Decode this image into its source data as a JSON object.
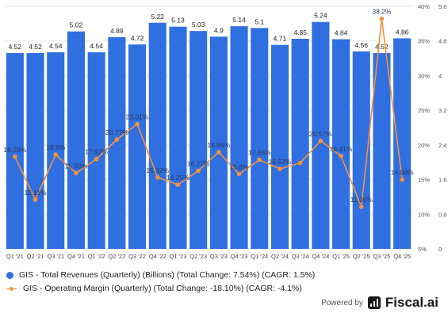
{
  "chart_data": {
    "type": "bar+line",
    "categories": [
      "Q1 '21",
      "Q2 '21",
      "Q3 '21",
      "Q4 '21",
      "Q1 '22",
      "Q2 '22",
      "Q3 '22",
      "Q4 '22",
      "Q1 '23",
      "Q2 '23",
      "Q3 '23",
      "Q4 '23",
      "Q1 '24",
      "Q2 '24",
      "Q3 '24",
      "Q4 '24",
      "Q1 '25",
      "Q2 '25",
      "Q3 '25",
      "Q4 '25"
    ],
    "series": [
      {
        "name": "GIS - Total Revenues (Quarterly) (Billions) (Total Change: 7.54%) (CAGR: 1.5%)",
        "type": "bar",
        "axis": "right-outer",
        "color": "#2f6fe0",
        "values": [
          4.52,
          4.52,
          4.54,
          5.02,
          4.54,
          4.89,
          4.72,
          5.22,
          5.13,
          5.03,
          4.9,
          5.14,
          5.1,
          4.71,
          4.85,
          5.24,
          4.84,
          4.56,
          4.52,
          4.86
        ],
        "labels": [
          "4.52",
          "4.52",
          "4.54",
          "5.02",
          "4.54",
          "4.89",
          "4.72",
          "5.22",
          "5.13",
          "5.03",
          "4.9",
          "5.14",
          "5.1",
          "4.71",
          "4.85",
          "5.24",
          "4.84",
          "4.56",
          "4.52",
          "4.86"
        ]
      },
      {
        "name": "GIS - Operating Margin (Quarterly) (Total Change: -18.10%) (CAGR: -4.1%)",
        "type": "line",
        "axis": "right-inner",
        "color": "#f5923e",
        "values": [
          18.29,
          12.11,
          18.6,
          15.93,
          17.97,
          20.77,
          23.01,
          15.32,
          14.25,
          16.27,
          18.96,
          15.8,
          17.86,
          16.53,
          17.4,
          20.57,
          18.41,
          11.06,
          38.2,
          14.98
        ],
        "labels": [
          "18.29%",
          "12.11%",
          "18.6%",
          "15.93%",
          "17.97%",
          "20.77%",
          "23.01%",
          "15.32%",
          "14.25%",
          "16.27%",
          "18.96%",
          "15.8%",
          "17.86%",
          "16.53%",
          "",
          "20.57%",
          "18.41%",
          "11.06%",
          "38.2%",
          "14.98%"
        ]
      }
    ],
    "revenue_axis": {
      "min": 0,
      "max": 5.6,
      "ticks": [
        "0",
        "0.8",
        "1.6",
        "2.4",
        "3.2",
        "4",
        "4.8",
        "5.6"
      ]
    },
    "margin_axis": {
      "min": 5,
      "max": 40,
      "ticks": [
        "5%",
        "10%",
        "15%",
        "20%",
        "25%",
        "30%",
        "35%",
        "40%"
      ]
    },
    "grid": true,
    "legend_position": "bottom-left"
  },
  "legend": {
    "revenue": "GIS - Total Revenues (Quarterly) (Billions) (Total Change: 7.54%) (CAGR: 1.5%)",
    "margin": "GIS - Operating Margin (Quarterly) (Total Change: -18.10%) (CAGR: -4.1%)"
  },
  "footer": {
    "powered_by": "Powered by",
    "brand": "Fiscal.ai"
  }
}
